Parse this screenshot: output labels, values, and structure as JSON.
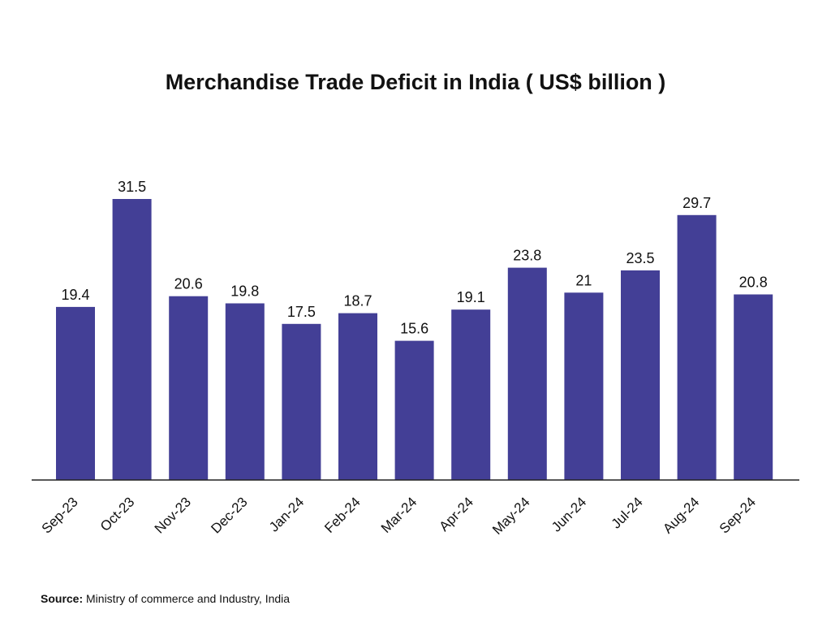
{
  "chart_data": {
    "type": "bar",
    "title": "Merchandise Trade Deficit in India ( US$ billion )",
    "categories": [
      "Sep-23",
      "Oct-23",
      "Nov-23",
      "Dec-23",
      "Jan-24",
      "Feb-24",
      "Mar-24",
      "Apr-24",
      "May-24",
      "Jun-24",
      "Jul-24",
      "Aug-24",
      "Sep-24"
    ],
    "values": [
      19.4,
      31.5,
      20.6,
      19.8,
      17.5,
      18.7,
      15.6,
      19.1,
      23.8,
      21,
      23.5,
      29.7,
      20.8
    ],
    "value_labels": [
      "19.4",
      "31.5",
      "20.6",
      "19.8",
      "17.5",
      "18.7",
      "15.6",
      "19.1",
      "23.8",
      "21",
      "23.5",
      "29.7",
      "20.8"
    ],
    "xlabel": "",
    "ylabel": "",
    "ylim": [
      0,
      31.5
    ],
    "grid": false,
    "legend": "none",
    "bar_color": "#433f96",
    "axis_color": "#222222"
  },
  "source": {
    "label": "Source:",
    "text": " Ministry of commerce and Industry, India"
  }
}
